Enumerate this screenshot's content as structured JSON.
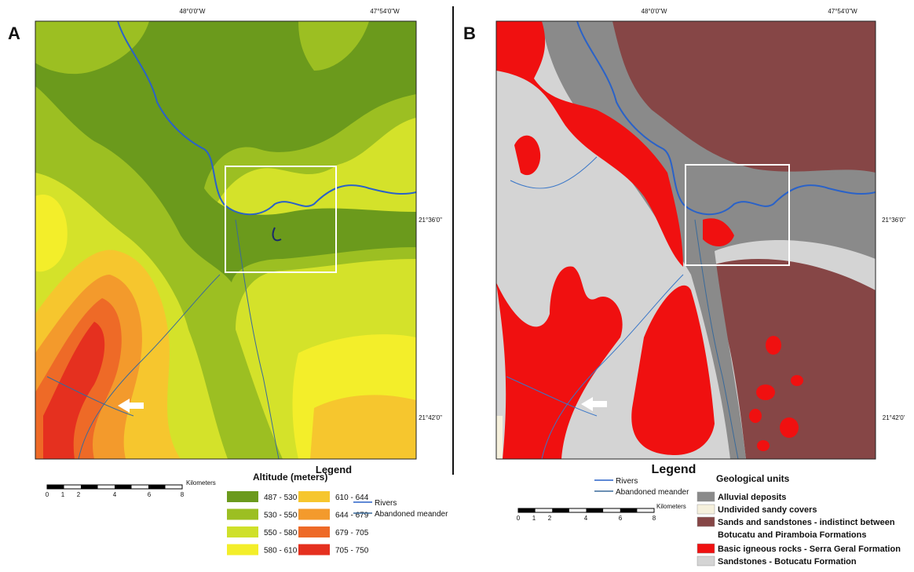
{
  "panels": [
    {
      "label": "A",
      "coords_top": [
        "48°0'0\"W",
        "47°54'0\"W"
      ],
      "coords_right": [
        "21°36'0\"",
        "21°42'0\""
      ],
      "legend_title": "Legend",
      "legend_heading": "Altitude (meters)",
      "classes": [
        {
          "label": "487 - 530",
          "color": "#6b9a1c"
        },
        {
          "label": "530 - 550",
          "color": "#9cbf22"
        },
        {
          "label": "550 - 580",
          "color": "#cfe02a"
        },
        {
          "label": "580 - 610",
          "color": "#f3ee2a"
        },
        {
          "label": "610 - 644",
          "color": "#f6c62e"
        },
        {
          "label": "644 - 679",
          "color": "#f39a2c"
        },
        {
          "label": "679 - 705",
          "color": "#ee6a27"
        },
        {
          "label": "705 - 750",
          "color": "#e5301f"
        }
      ],
      "lines": [
        {
          "label": "Rivers",
          "color": "#2a62c8"
        },
        {
          "label": "Abandoned meander",
          "color": "#3a6a9a"
        }
      ],
      "scale_unit": "Kilometers",
      "scale_ticks": [
        "0",
        "1",
        "2",
        "4",
        "6",
        "8"
      ]
    },
    {
      "label": "B",
      "coords_top": [
        "48°0'0\"W",
        "47°54'0\"W"
      ],
      "coords_right": [
        "21°36'0\"",
        "21°42'0'"
      ],
      "legend_title": "Legend",
      "legend_heading": "Geological units",
      "classes": [
        {
          "lines": [
            "Alluvial deposits"
          ],
          "color": "#8a8a8a"
        },
        {
          "lines": [
            "Undivided sandy covers"
          ],
          "color": "#f5f0dc"
        },
        {
          "lines": [
            "Sands and sandstones - indistinct between",
            "Botucatu and Piramboia Formations"
          ],
          "color": "#864646"
        },
        {
          "lines": [
            "Basic igneous rocks - Serra Geral Formation"
          ],
          "color": "#f01010"
        },
        {
          "lines": [
            "Sandstones - Botucatu Formation"
          ],
          "color": "#d4d4d4"
        }
      ],
      "lines": [
        {
          "label": "Rivers",
          "color": "#2a62c8"
        },
        {
          "label": "Abandoned meander",
          "color": "#3a6a9a"
        }
      ],
      "scale_unit": "Kilometers",
      "scale_ticks": [
        "0",
        "1",
        "2",
        "4",
        "6",
        "8"
      ]
    }
  ]
}
